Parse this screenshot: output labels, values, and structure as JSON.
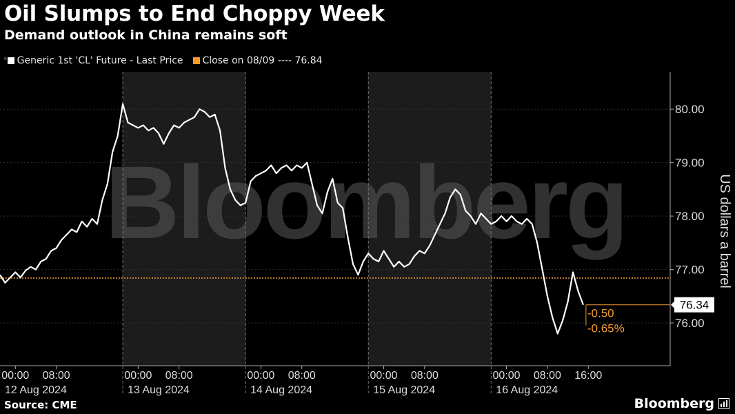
{
  "header": {
    "title": "Oil Slumps to End Choppy Week",
    "subtitle": "Demand outlook in China remains soft"
  },
  "legend": {
    "series_label": "Generic 1st 'CL' Future - Last Price",
    "reference_label": "Close on 08/09 ---- 76.84",
    "series_color": "#ffffff",
    "reference_color": "#f59b2e"
  },
  "footer": {
    "source": "Source: CME",
    "brand": "Bloomberg"
  },
  "watermark": "Bloomberg",
  "chart_data": {
    "type": "line",
    "ylabel": "US dollars a barrel",
    "ylim": [
      75.2,
      80.7
    ],
    "yticks": [
      76.0,
      77.0,
      78.0,
      79.0,
      80.0
    ],
    "ytick_labels": [
      "76.00",
      "77.00",
      "78.00",
      "79.00",
      "80.00"
    ],
    "xlim_hours": [
      -3,
      128
    ],
    "x_tick_labels": [
      {
        "h": 0,
        "label": "00:00"
      },
      {
        "h": 8,
        "label": "08:00"
      },
      {
        "h": 24,
        "label": "00:00"
      },
      {
        "h": 32,
        "label": "08:00"
      },
      {
        "h": 48,
        "label": "00:00"
      },
      {
        "h": 56,
        "label": "08:00"
      },
      {
        "h": 72,
        "label": "00:00"
      },
      {
        "h": 80,
        "label": "08:00"
      },
      {
        "h": 96,
        "label": "00:00"
      },
      {
        "h": 104,
        "label": "08:00"
      },
      {
        "h": 112,
        "label": "16:00"
      }
    ],
    "day_labels": [
      {
        "h": 4,
        "label": "12 Aug 2024"
      },
      {
        "h": 28,
        "label": "13 Aug 2024"
      },
      {
        "h": 52,
        "label": "14 Aug 2024"
      },
      {
        "h": 76,
        "label": "15 Aug 2024"
      },
      {
        "h": 100,
        "label": "16 Aug 2024"
      }
    ],
    "shaded_days": [
      [
        21,
        45
      ],
      [
        69,
        93
      ]
    ],
    "day_dividers": [
      21,
      45,
      69,
      93
    ],
    "reference_value": 76.84,
    "last_price_label": "76.34",
    "change_label": "-0.50",
    "change_pct_label": "-0.65%",
    "series": [
      {
        "name": "Generic 1st 'CL' Future - Last Price",
        "points": [
          [
            -3,
            76.9
          ],
          [
            -2,
            76.75
          ],
          [
            -1,
            76.85
          ],
          [
            0,
            76.95
          ],
          [
            1,
            76.85
          ],
          [
            2,
            76.98
          ],
          [
            3,
            77.05
          ],
          [
            4,
            77.0
          ],
          [
            5,
            77.15
          ],
          [
            6,
            77.2
          ],
          [
            7,
            77.35
          ],
          [
            8,
            77.4
          ],
          [
            9,
            77.55
          ],
          [
            10,
            77.65
          ],
          [
            11,
            77.75
          ],
          [
            12,
            77.7
          ],
          [
            13,
            77.9
          ],
          [
            14,
            77.8
          ],
          [
            15,
            77.95
          ],
          [
            16,
            77.85
          ],
          [
            17,
            78.3
          ],
          [
            18,
            78.6
          ],
          [
            19,
            79.2
          ],
          [
            20,
            79.5
          ],
          [
            21,
            80.1
          ],
          [
            22,
            79.75
          ],
          [
            23,
            79.7
          ],
          [
            24,
            79.65
          ],
          [
            25,
            79.7
          ],
          [
            26,
            79.6
          ],
          [
            27,
            79.65
          ],
          [
            28,
            79.55
          ],
          [
            29,
            79.35
          ],
          [
            30,
            79.55
          ],
          [
            31,
            79.7
          ],
          [
            32,
            79.65
          ],
          [
            33,
            79.75
          ],
          [
            34,
            79.8
          ],
          [
            35,
            79.85
          ],
          [
            36,
            80.0
          ],
          [
            37,
            79.95
          ],
          [
            38,
            79.85
          ],
          [
            39,
            79.9
          ],
          [
            40,
            79.6
          ],
          [
            41,
            78.9
          ],
          [
            42,
            78.5
          ],
          [
            43,
            78.3
          ],
          [
            44,
            78.2
          ],
          [
            45,
            78.25
          ],
          [
            46,
            78.65
          ],
          [
            47,
            78.75
          ],
          [
            48,
            78.8
          ],
          [
            49,
            78.85
          ],
          [
            50,
            78.95
          ],
          [
            51,
            78.8
          ],
          [
            52,
            78.9
          ],
          [
            53,
            78.95
          ],
          [
            54,
            78.85
          ],
          [
            55,
            78.95
          ],
          [
            56,
            78.9
          ],
          [
            57,
            79.0
          ],
          [
            58,
            78.6
          ],
          [
            59,
            78.2
          ],
          [
            60,
            78.05
          ],
          [
            61,
            78.45
          ],
          [
            62,
            78.7
          ],
          [
            63,
            78.25
          ],
          [
            64,
            78.15
          ],
          [
            65,
            77.6
          ],
          [
            66,
            77.1
          ],
          [
            67,
            76.9
          ],
          [
            68,
            77.15
          ],
          [
            69,
            77.3
          ],
          [
            70,
            77.2
          ],
          [
            71,
            77.15
          ],
          [
            72,
            77.35
          ],
          [
            73,
            77.2
          ],
          [
            74,
            77.05
          ],
          [
            75,
            77.15
          ],
          [
            76,
            77.05
          ],
          [
            77,
            77.1
          ],
          [
            78,
            77.25
          ],
          [
            79,
            77.35
          ],
          [
            80,
            77.3
          ],
          [
            81,
            77.45
          ],
          [
            82,
            77.65
          ],
          [
            83,
            77.85
          ],
          [
            84,
            78.05
          ],
          [
            85,
            78.35
          ],
          [
            86,
            78.5
          ],
          [
            87,
            78.4
          ],
          [
            88,
            78.1
          ],
          [
            89,
            78.0
          ],
          [
            90,
            77.85
          ],
          [
            91,
            78.05
          ],
          [
            92,
            77.95
          ],
          [
            93,
            77.85
          ],
          [
            94,
            77.9
          ],
          [
            95,
            78.0
          ],
          [
            96,
            77.9
          ],
          [
            97,
            78.0
          ],
          [
            98,
            77.9
          ],
          [
            99,
            77.85
          ],
          [
            100,
            77.95
          ],
          [
            101,
            77.85
          ],
          [
            102,
            77.5
          ],
          [
            103,
            77.0
          ],
          [
            104,
            76.5
          ],
          [
            105,
            76.1
          ],
          [
            106,
            75.8
          ],
          [
            107,
            76.05
          ],
          [
            108,
            76.4
          ],
          [
            109,
            76.95
          ],
          [
            110,
            76.6
          ],
          [
            111,
            76.34
          ]
        ]
      }
    ]
  }
}
